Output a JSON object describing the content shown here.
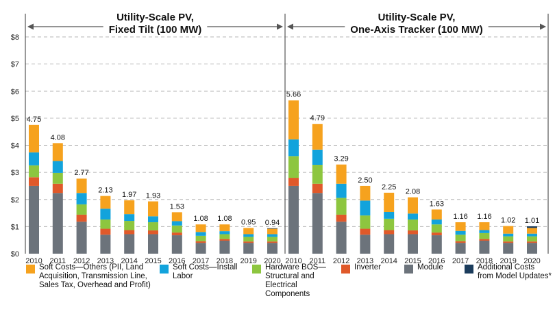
{
  "chart_data": {
    "type": "bar",
    "stacked": true,
    "y_tick_labels": [
      "$0",
      "$1",
      "$2",
      "$3",
      "$4",
      "$5",
      "$6",
      "$7",
      "$8"
    ],
    "ylim": [
      0,
      8
    ],
    "grid": true,
    "legend_position": "bottom",
    "colors": {
      "soft_others": "#F6A21E",
      "soft_labor": "#12A3DC",
      "hardware_bos": "#8DC63F",
      "inverter": "#E0592A",
      "module": "#6C737B",
      "additional": "#1B3C5C"
    },
    "legend": [
      {
        "key": "soft_others",
        "label": "Soft Costs—Others (PII, Land Acquisition, Transmission Line, Sales Tax, Overhead and Profit)"
      },
      {
        "key": "soft_labor",
        "label": "Soft Costs—Install Labor"
      },
      {
        "key": "hardware_bos",
        "label": "Hardware BOS—Structural and Electrical Components"
      },
      {
        "key": "inverter",
        "label": "Inverter"
      },
      {
        "key": "module",
        "label": "Module"
      },
      {
        "key": "additional",
        "label": "Additional Costs from Model Updates*"
      }
    ],
    "panels": [
      {
        "title_line1": "Utility-Scale PV,",
        "title_line2": "Fixed Tilt (100 MW)",
        "categories": [
          "2010",
          "2011",
          "2012",
          "2013",
          "2014",
          "2015",
          "2016",
          "2017",
          "2018",
          "2019",
          "2020"
        ],
        "totals": [
          "4.75",
          "4.08",
          "2.77",
          "2.13",
          "1.97",
          "1.93",
          "1.53",
          "1.08",
          "1.08",
          "0.95",
          "0.94"
        ],
        "series": [
          {
            "key": "module",
            "values": [
              2.5,
              2.24,
              1.18,
              0.7,
              0.72,
              0.72,
              0.68,
              0.4,
              0.48,
              0.4,
              0.4
            ]
          },
          {
            "key": "inverter",
            "values": [
              0.32,
              0.34,
              0.26,
              0.22,
              0.15,
              0.14,
              0.1,
              0.06,
              0.06,
              0.05,
              0.05
            ]
          },
          {
            "key": "hardware_bos",
            "values": [
              0.44,
              0.4,
              0.38,
              0.34,
              0.34,
              0.3,
              0.26,
              0.2,
              0.18,
              0.17,
              0.17
            ]
          },
          {
            "key": "soft_labor",
            "values": [
              0.48,
              0.44,
              0.42,
              0.4,
              0.25,
              0.22,
              0.16,
              0.14,
              0.11,
              0.1,
              0.1
            ]
          },
          {
            "key": "soft_others",
            "values": [
              1.01,
              0.66,
              0.53,
              0.47,
              0.51,
              0.55,
              0.33,
              0.28,
              0.25,
              0.23,
              0.2
            ]
          },
          {
            "key": "additional",
            "values": [
              0,
              0,
              0,
              0,
              0,
              0,
              0,
              0,
              0,
              0,
              0.02
            ]
          }
        ]
      },
      {
        "title_line1": "Utility-Scale PV,",
        "title_line2": "One-Axis Tracker (100 MW)",
        "categories": [
          "2010",
          "2011",
          "2012",
          "2013",
          "2014",
          "2015",
          "2016",
          "2017",
          "2018",
          "2019",
          "2020"
        ],
        "totals": [
          "5.66",
          "4.79",
          "3.29",
          "2.50",
          "2.25",
          "2.08",
          "1.63",
          "1.16",
          "1.16",
          "1.02",
          "1.01"
        ],
        "series": [
          {
            "key": "module",
            "values": [
              2.5,
              2.24,
              1.18,
              0.7,
              0.72,
              0.72,
              0.68,
              0.4,
              0.48,
              0.4,
              0.4
            ]
          },
          {
            "key": "inverter",
            "values": [
              0.3,
              0.34,
              0.26,
              0.22,
              0.15,
              0.14,
              0.1,
              0.06,
              0.06,
              0.05,
              0.05
            ]
          },
          {
            "key": "hardware_bos",
            "values": [
              0.8,
              0.7,
              0.62,
              0.49,
              0.42,
              0.4,
              0.3,
              0.24,
              0.22,
              0.19,
              0.19
            ]
          },
          {
            "key": "soft_labor",
            "values": [
              0.62,
              0.56,
              0.52,
              0.55,
              0.25,
              0.22,
              0.18,
              0.14,
              0.11,
              0.1,
              0.1
            ]
          },
          {
            "key": "soft_others",
            "values": [
              1.44,
              0.95,
              0.71,
              0.54,
              0.71,
              0.6,
              0.37,
              0.32,
              0.29,
              0.28,
              0.21
            ]
          },
          {
            "key": "additional",
            "values": [
              0,
              0,
              0,
              0,
              0,
              0,
              0,
              0,
              0,
              0,
              0.06
            ]
          }
        ]
      }
    ]
  }
}
